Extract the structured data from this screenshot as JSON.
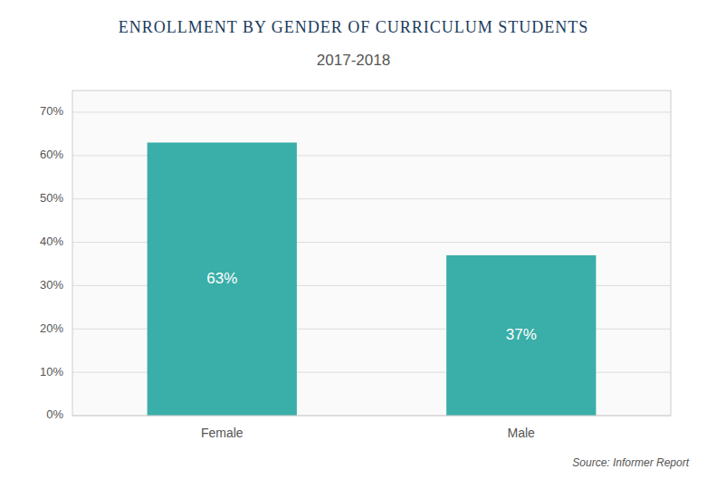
{
  "chart_data": {
    "type": "bar",
    "title": "ENROLLMENT BY GENDER OF CURRICULUM STUDENTS",
    "subtitle": "2017-2018",
    "categories": [
      "Female",
      "Male"
    ],
    "values": [
      63,
      37
    ],
    "value_labels": [
      "63%",
      "37%"
    ],
    "data_labels": true,
    "color": "#3aaea8",
    "ylim": [
      0,
      75
    ],
    "yticks": [
      {
        "value": 0,
        "label": "0%"
      },
      {
        "value": 10,
        "label": "10%"
      },
      {
        "value": 20,
        "label": "20%"
      },
      {
        "value": 30,
        "label": "30%"
      },
      {
        "value": 40,
        "label": "40%"
      },
      {
        "value": 50,
        "label": "50%"
      },
      {
        "value": 60,
        "label": "60%"
      },
      {
        "value": 70,
        "label": "70%"
      }
    ],
    "grid": true,
    "annotations": [
      "Source: Informer Report"
    ]
  }
}
